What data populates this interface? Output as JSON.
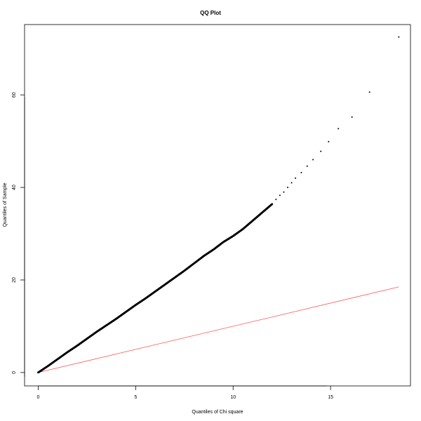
{
  "chart_data": {
    "type": "scatter",
    "title": "QQ Plot",
    "xlabel": "Quantiles of Chi square",
    "ylabel": "Quantiles of Sample",
    "xlim": [
      -0.7,
      19.1
    ],
    "ylim": [
      -2.9,
      75.2
    ],
    "xticks": [
      0,
      5,
      10,
      15
    ],
    "yticks": [
      0,
      20,
      40,
      60
    ],
    "grid": false,
    "legend": "none",
    "point_color": "#000000",
    "reference_line_color": "#ff5555",
    "reference_line": {
      "x": [
        0,
        18.5
      ],
      "y": [
        0,
        18.5
      ]
    },
    "series": [
      {
        "curve": [
          [
            0.0,
            0.0
          ],
          [
            0.5,
            1.4
          ],
          [
            1.0,
            2.9
          ],
          [
            1.5,
            4.4
          ],
          [
            2.0,
            5.8
          ],
          [
            2.5,
            7.3
          ],
          [
            3.0,
            8.8
          ],
          [
            3.5,
            10.2
          ],
          [
            4.0,
            11.6
          ],
          [
            4.5,
            13.1
          ],
          [
            5.0,
            14.6
          ],
          [
            5.5,
            16.0
          ],
          [
            6.0,
            17.5
          ],
          [
            6.5,
            19.0
          ],
          [
            7.0,
            20.5
          ],
          [
            7.5,
            22.0
          ],
          [
            8.0,
            23.6
          ],
          [
            8.5,
            25.2
          ],
          [
            9.0,
            26.6
          ],
          [
            9.5,
            28.2
          ],
          [
            10.0,
            29.5
          ],
          [
            10.5,
            31.0
          ],
          [
            11.0,
            32.8
          ],
          [
            11.5,
            34.6
          ],
          [
            12.0,
            36.4
          ]
        ],
        "tail_points": [
          [
            12.2,
            37.4
          ],
          [
            12.4,
            38.3
          ],
          [
            12.6,
            39.0
          ],
          [
            12.8,
            40.0
          ],
          [
            13.0,
            41.0
          ],
          [
            13.2,
            42.0
          ],
          [
            13.5,
            43.2
          ],
          [
            13.8,
            44.6
          ],
          [
            14.1,
            46.0
          ],
          [
            14.5,
            47.8
          ],
          [
            14.9,
            49.9
          ],
          [
            15.4,
            52.7
          ],
          [
            16.1,
            55.2
          ],
          [
            17.0,
            60.6
          ],
          [
            18.5,
            72.5
          ]
        ]
      }
    ]
  }
}
